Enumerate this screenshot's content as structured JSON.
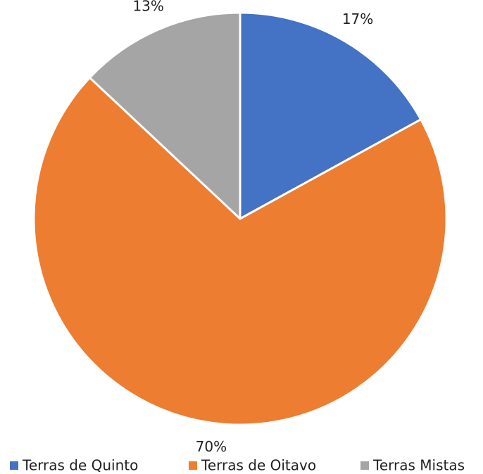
{
  "chart_data": {
    "type": "pie",
    "categories": [
      "Terras de Quinto",
      "Terras de Oitavo",
      "Terras Mistas"
    ],
    "values": [
      17,
      70,
      13
    ],
    "value_labels": [
      "17%",
      "70%",
      "13%"
    ],
    "colors": [
      "#4472c4",
      "#ed7d31",
      "#a5a5a5"
    ],
    "legend": "bottom"
  }
}
